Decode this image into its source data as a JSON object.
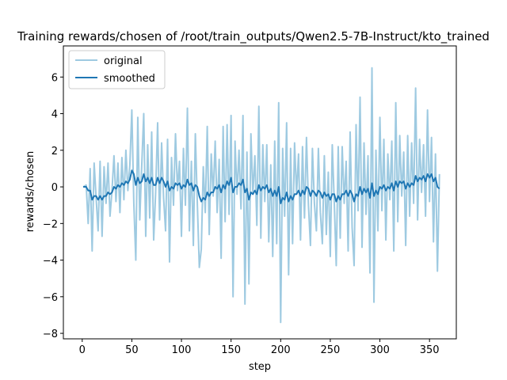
{
  "chart_data": {
    "type": "line",
    "title": "Training rewards/chosen of /root/train_outputs/Qwen2.5-7B-Instruct/kto_trained",
    "xlabel": "step",
    "ylabel": "rewards/chosen",
    "xlim": [
      -19,
      377
    ],
    "ylim": [
      -8.3,
      7.7
    ],
    "xticks": [
      0,
      50,
      100,
      150,
      200,
      250,
      300,
      350
    ],
    "yticks": [
      -8,
      -6,
      -4,
      -2,
      0,
      2,
      4,
      6
    ],
    "legend": {
      "position": "upper-left",
      "entries": [
        "original",
        "smoothed"
      ]
    },
    "colors": {
      "original": "#9ecae1",
      "smoothed": "#1f77b4"
    },
    "series": [
      {
        "name": "original",
        "x": [
          1,
          4,
          6,
          8,
          10,
          12,
          14,
          16,
          18,
          20,
          22,
          24,
          26,
          28,
          30,
          32,
          34,
          36,
          38,
          40,
          42,
          44,
          46,
          48,
          50,
          52,
          54,
          56,
          58,
          60,
          62,
          64,
          66,
          68,
          70,
          72,
          74,
          76,
          78,
          80,
          82,
          84,
          86,
          88,
          90,
          92,
          94,
          96,
          98,
          100,
          102,
          104,
          106,
          108,
          110,
          112,
          114,
          116,
          118,
          120,
          122,
          124,
          126,
          128,
          130,
          132,
          134,
          136,
          138,
          140,
          142,
          144,
          146,
          148,
          150,
          152,
          154,
          156,
          158,
          160,
          162,
          164,
          166,
          168,
          170,
          172,
          174,
          176,
          178,
          180,
          182,
          184,
          186,
          188,
          190,
          192,
          194,
          196,
          198,
          200,
          202,
          204,
          206,
          208,
          210,
          212,
          214,
          216,
          218,
          220,
          222,
          224,
          226,
          228,
          230,
          232,
          234,
          236,
          238,
          240,
          242,
          244,
          246,
          248,
          250,
          252,
          254,
          256,
          258,
          260,
          262,
          264,
          266,
          268,
          270,
          272,
          274,
          276,
          278,
          280,
          282,
          284,
          286,
          288,
          290,
          292,
          294,
          296,
          298,
          300,
          302,
          304,
          306,
          308,
          310,
          312,
          314,
          316,
          318,
          320,
          322,
          324,
          326,
          328,
          330,
          332,
          334,
          336,
          338,
          340,
          342,
          344,
          346,
          348,
          350,
          352,
          354,
          356,
          358,
          360
        ],
        "values": [
          0.0,
          0.1,
          -2.0,
          1.0,
          -3.5,
          1.3,
          -0.6,
          -2.4,
          1.4,
          -2.7,
          1.1,
          -0.9,
          1.3,
          -1.6,
          -0.2,
          1.7,
          -0.8,
          1.3,
          -1.4,
          1.6,
          -0.7,
          2.0,
          -0.2,
          1.2,
          4.2,
          -0.9,
          -4.0,
          3.8,
          -1.8,
          1.2,
          4.0,
          -2.7,
          2.3,
          -1.7,
          3.0,
          -2.9,
          -0.3,
          3.5,
          -1.8,
          2.4,
          -0.6,
          -2.4,
          2.6,
          -4.1,
          1.6,
          -1.0,
          2.9,
          -0.2,
          1.4,
          -2.7,
          2.1,
          -1.0,
          4.3,
          -2.4,
          1.4,
          -3.2,
          2.9,
          -0.9,
          -4.4,
          -3.4,
          1.1,
          -1.4,
          3.3,
          -2.6,
          1.8,
          -0.5,
          2.5,
          -1.4,
          1.5,
          -3.9,
          3.3,
          -1.9,
          3.4,
          -1.5,
          3.9,
          -6.0,
          2.5,
          -0.4,
          2.0,
          -1.2,
          3.9,
          -6.4,
          1.9,
          -5.3,
          2.9,
          -0.4,
          1.7,
          -2.1,
          4.4,
          -2.8,
          2.3,
          -0.8,
          2.3,
          -3.0,
          1.2,
          -3.8,
          2.5,
          -3.1,
          4.6,
          -7.4,
          2.1,
          -1.6,
          3.5,
          -4.8,
          2.1,
          -3.1,
          2.4,
          -0.4,
          1.8,
          -2.9,
          2.2,
          -1.7,
          2.7,
          -1.0,
          -3.2,
          2.1,
          -0.9,
          -2.4,
          2.1,
          -1.4,
          -3.1,
          1.7,
          -2.6,
          0.8,
          -3.8,
          2.3,
          -0.8,
          -4.3,
          2.2,
          -2.8,
          2.2,
          -0.9,
          1.4,
          -3.5,
          3.0,
          -2.2,
          -4.3,
          3.4,
          -1.3,
          4.9,
          -3.3,
          2.4,
          -1.5,
          1.7,
          -4.7,
          6.5,
          -6.3,
          2.0,
          -2.4,
          3.8,
          -1.3,
          2.6,
          -2.9,
          1.8,
          -0.7,
          2.5,
          -3.5,
          4.6,
          -1.9,
          2.8,
          -0.5,
          1.9,
          -3.2,
          2.8,
          -1.6,
          2.4,
          -0.9,
          5.4,
          -1.8,
          2.6,
          -0.3,
          2.3,
          -1.6,
          4.2,
          -0.8,
          2.7,
          -3.0,
          1.8,
          -4.6,
          0.7
        ]
      },
      {
        "name": "smoothed",
        "x": [
          1,
          4,
          6,
          8,
          10,
          12,
          14,
          16,
          18,
          20,
          22,
          24,
          26,
          28,
          30,
          32,
          34,
          36,
          38,
          40,
          42,
          44,
          46,
          48,
          50,
          52,
          54,
          56,
          58,
          60,
          62,
          64,
          66,
          68,
          70,
          72,
          74,
          76,
          78,
          80,
          82,
          84,
          86,
          88,
          90,
          92,
          94,
          96,
          98,
          100,
          102,
          104,
          106,
          108,
          110,
          112,
          114,
          116,
          118,
          120,
          122,
          124,
          126,
          128,
          130,
          132,
          134,
          136,
          138,
          140,
          142,
          144,
          146,
          148,
          150,
          152,
          154,
          156,
          158,
          160,
          162,
          164,
          166,
          168,
          170,
          172,
          174,
          176,
          178,
          180,
          182,
          184,
          186,
          188,
          190,
          192,
          194,
          196,
          198,
          200,
          202,
          204,
          206,
          208,
          210,
          212,
          214,
          216,
          218,
          220,
          222,
          224,
          226,
          228,
          230,
          232,
          234,
          236,
          238,
          240,
          242,
          244,
          246,
          248,
          250,
          252,
          254,
          256,
          258,
          260,
          262,
          264,
          266,
          268,
          270,
          272,
          274,
          276,
          278,
          280,
          282,
          284,
          286,
          288,
          290,
          292,
          294,
          296,
          298,
          300,
          302,
          304,
          306,
          308,
          310,
          312,
          314,
          316,
          318,
          320,
          322,
          324,
          326,
          328,
          330,
          332,
          334,
          336,
          338,
          340,
          342,
          344,
          346,
          348,
          350,
          352,
          354,
          356,
          358,
          360
        ],
        "values": [
          0.0,
          0.0,
          -0.2,
          -0.2,
          -0.7,
          -0.5,
          -0.5,
          -0.7,
          -0.5,
          -0.7,
          -0.5,
          -0.5,
          -0.3,
          -0.4,
          -0.3,
          0.0,
          -0.1,
          0.1,
          0.0,
          0.2,
          0.1,
          0.3,
          0.2,
          0.4,
          0.9,
          0.7,
          0.1,
          0.5,
          0.2,
          0.3,
          0.7,
          0.3,
          0.5,
          0.2,
          0.5,
          0.1,
          0.1,
          0.5,
          0.2,
          0.5,
          0.3,
          0.0,
          0.3,
          -0.2,
          0.0,
          -0.1,
          0.2,
          0.1,
          0.2,
          -0.1,
          0.1,
          0.0,
          0.4,
          0.1,
          0.2,
          -0.2,
          0.1,
          0.0,
          -0.5,
          -0.8,
          -0.6,
          -0.7,
          -0.3,
          -0.5,
          -0.3,
          -0.3,
          0.0,
          -0.1,
          0.1,
          -0.3,
          0.1,
          -0.1,
          0.3,
          0.1,
          0.5,
          -0.3,
          0.0,
          0.0,
          0.2,
          0.1,
          0.4,
          -0.3,
          -0.1,
          -0.7,
          -0.3,
          -0.4,
          -0.2,
          -0.4,
          0.1,
          -0.2,
          0.0,
          -0.1,
          0.1,
          -0.3,
          -0.1,
          -0.5,
          -0.2,
          -0.5,
          0.0,
          -0.9,
          -0.6,
          -0.7,
          -0.3,
          -0.8,
          -0.5,
          -0.7,
          -0.4,
          -0.4,
          -0.2,
          -0.5,
          -0.2,
          -0.4,
          0.0,
          -0.1,
          -0.5,
          -0.2,
          -0.3,
          -0.5,
          -0.2,
          -0.3,
          -0.6,
          -0.3,
          -0.5,
          -0.4,
          -0.7,
          -0.4,
          -0.4,
          -0.8,
          -0.5,
          -0.7,
          -0.4,
          -0.4,
          -0.2,
          -0.5,
          -0.2,
          -0.4,
          -0.8,
          -0.4,
          -0.5,
          0.0,
          -0.4,
          -0.1,
          -0.3,
          -0.1,
          -0.6,
          0.2,
          -0.5,
          -0.2,
          -0.4,
          0.0,
          -0.1,
          0.1,
          -0.2,
          0.0,
          -0.1,
          0.2,
          -0.2,
          0.3,
          0.0,
          0.3,
          0.2,
          0.3,
          -0.1,
          0.2,
          0.0,
          0.2,
          0.1,
          0.6,
          0.3,
          0.5,
          0.4,
          0.6,
          0.3,
          0.7,
          0.5,
          0.7,
          0.3,
          0.5,
          0.0,
          -0.1
        ]
      }
    ]
  }
}
